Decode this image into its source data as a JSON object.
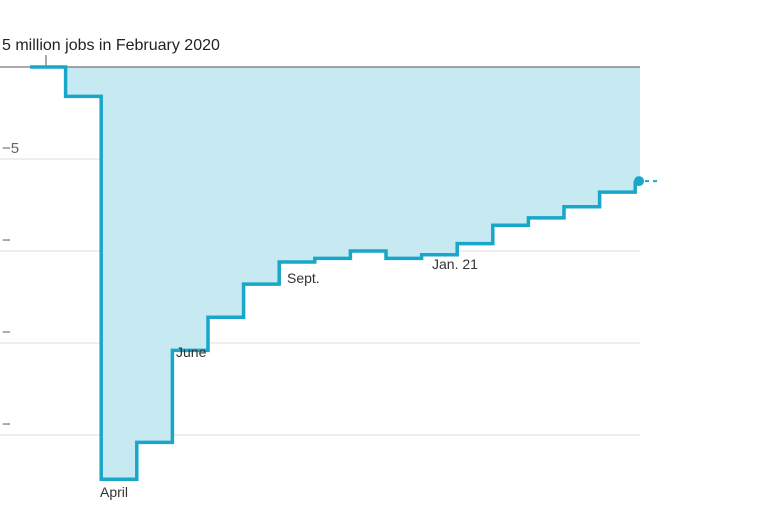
{
  "title": "",
  "chart_data": {
    "type": "area",
    "step": true,
    "x": [
      "2020-02",
      "2020-03",
      "2020-04",
      "2020-05",
      "2020-06",
      "2020-07",
      "2020-08",
      "2020-09",
      "2020-10",
      "2020-11",
      "2020-12",
      "2021-01",
      "2021-02",
      "2021-03",
      "2021-04",
      "2021-05",
      "2021-06"
    ],
    "values": [
      -1.6,
      -22.4,
      -20.4,
      -15.4,
      -13.6,
      -11.8,
      -10.6,
      -10.4,
      -10.0,
      -10.4,
      -10.2,
      -9.6,
      -8.6,
      -8.2,
      -7.6,
      -6.8,
      -6.2
    ],
    "ylim": [
      -23,
      0
    ],
    "yticks": [
      {
        "value": -5,
        "label": "−5 "
      },
      {
        "value": -10,
        "label": "−"
      },
      {
        "value": -15,
        "label": "−"
      },
      {
        "value": -20,
        "label": "−"
      }
    ],
    "reference_label": "5 million jobs in February 2020",
    "annotations": [
      {
        "index": 1,
        "text": "April"
      },
      {
        "index": 3,
        "text": "June"
      },
      {
        "index": 6,
        "text": "Sept."
      },
      {
        "index": 10,
        "text": "Jan. 21"
      }
    ],
    "end_label": {
      "value_text": "",
      "detail_text_1": "",
      "detail_text_2": ""
    },
    "colors": {
      "line": "#19a7c9",
      "fill": "#c7e9f1",
      "grid": "#dddddd",
      "baseline": "#555555"
    },
    "grid": true,
    "xlabel": "",
    "ylabel": ""
  }
}
